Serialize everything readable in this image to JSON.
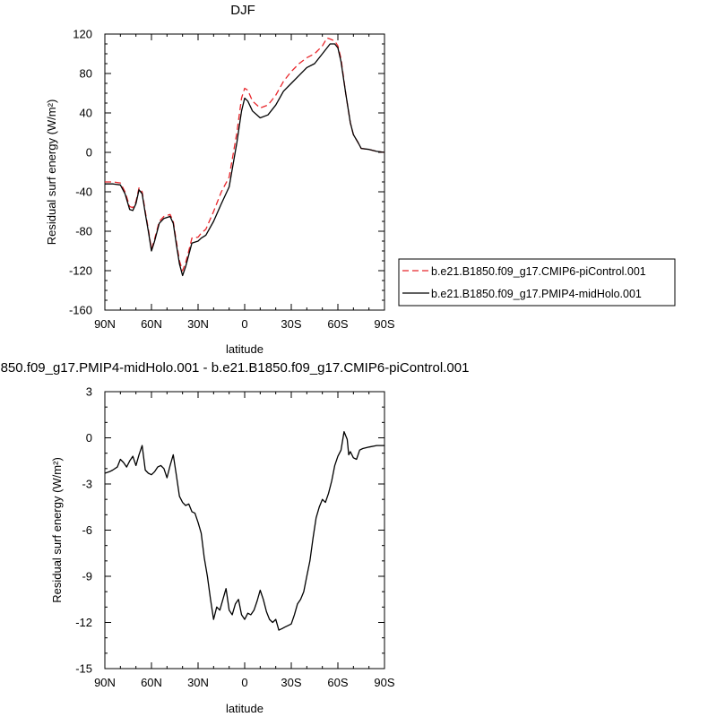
{
  "chart_data": [
    {
      "type": "line",
      "title": "DJF",
      "xlabel": "latitude",
      "ylabel": "Residual surf energy (W/m²)",
      "xlim": [
        90,
        -90
      ],
      "ylim": [
        -160,
        120
      ],
      "x_ticks": [
        {
          "value": 90,
          "label": "90N"
        },
        {
          "value": 60,
          "label": "60N"
        },
        {
          "value": 30,
          "label": "30N"
        },
        {
          "value": 0,
          "label": "0"
        },
        {
          "value": -30,
          "label": "30S"
        },
        {
          "value": -60,
          "label": "60S"
        },
        {
          "value": -90,
          "label": "90S"
        }
      ],
      "y_ticks": [
        120,
        80,
        40,
        0,
        -40,
        -80,
        -120,
        -160
      ],
      "grid": false,
      "legend": "outside-right",
      "series": [
        {
          "name": "b.e21.B1850.f09_g17.CMIP6-piControl.001",
          "color": "#e8262b",
          "dash": "dashed",
          "x": [
            90,
            85,
            80,
            77,
            74,
            72,
            70,
            68,
            66,
            64,
            62,
            60,
            58,
            55,
            52,
            50,
            48,
            46,
            44,
            42,
            40,
            38,
            36,
            34,
            30,
            28,
            25,
            20,
            15,
            10,
            5,
            2,
            0,
            -2,
            -5,
            -10,
            -15,
            -20,
            -25,
            -30,
            -35,
            -40,
            -45,
            -50,
            -53,
            -55,
            -58,
            -60,
            -62,
            -65,
            -68,
            -70,
            -73,
            -75,
            -80,
            -85,
            -90
          ],
          "y": [
            -30,
            -30,
            -31,
            -40,
            -55,
            -56,
            -50,
            -36,
            -40,
            -60,
            -78,
            -98,
            -88,
            -70,
            -65,
            -64,
            -63,
            -70,
            -90,
            -110,
            -120,
            -112,
            -100,
            -87,
            -86,
            -82,
            -78,
            -60,
            -40,
            -25,
            20,
            55,
            65,
            63,
            52,
            45,
            48,
            58,
            72,
            82,
            90,
            96,
            100,
            108,
            116,
            115,
            113,
            108,
            95,
            60,
            30,
            18,
            10,
            4,
            3,
            1,
            0
          ]
        },
        {
          "name": "b.e21.B1850.f09_g17.PMIP4-midHolo.001",
          "color": "#000000",
          "dash": "solid",
          "x": [
            90,
            85,
            80,
            77,
            74,
            72,
            70,
            68,
            66,
            64,
            62,
            60,
            58,
            55,
            52,
            50,
            48,
            46,
            44,
            42,
            40,
            38,
            36,
            34,
            30,
            28,
            25,
            20,
            15,
            10,
            5,
            2,
            0,
            -2,
            -5,
            -10,
            -15,
            -20,
            -25,
            -30,
            -35,
            -40,
            -45,
            -50,
            -53,
            -55,
            -58,
            -60,
            -62,
            -65,
            -68,
            -70,
            -73,
            -75,
            -80,
            -85,
            -90
          ],
          "y": [
            -32,
            -32,
            -33,
            -42,
            -58,
            -59,
            -52,
            -38,
            -42,
            -62,
            -80,
            -100,
            -90,
            -72,
            -67,
            -66,
            -65,
            -72,
            -93,
            -113,
            -125,
            -116,
            -104,
            -92,
            -90,
            -87,
            -84,
            -70,
            -52,
            -35,
            10,
            42,
            55,
            52,
            42,
            35,
            38,
            48,
            62,
            70,
            78,
            86,
            90,
            100,
            106,
            110,
            110,
            106,
            92,
            60,
            30,
            18,
            10,
            4,
            3,
            1,
            0
          ]
        }
      ]
    },
    {
      "type": "line",
      "title": "850.f09_g17.PMIP4-midHolo.001 - b.e21.B1850.f09_g17.CMIP6-piControl.001",
      "xlabel": "latitude",
      "ylabel": "Residual surf energy (W/m²)",
      "xlim": [
        90,
        -90
      ],
      "ylim": [
        -15,
        3
      ],
      "x_ticks": [
        {
          "value": 90,
          "label": "90N"
        },
        {
          "value": 60,
          "label": "60N"
        },
        {
          "value": 30,
          "label": "30N"
        },
        {
          "value": 0,
          "label": "0"
        },
        {
          "value": -30,
          "label": "30S"
        },
        {
          "value": -60,
          "label": "60S"
        },
        {
          "value": -90,
          "label": "90S"
        }
      ],
      "y_ticks": [
        3,
        0,
        -3,
        -6,
        -9,
        -12,
        -15
      ],
      "grid": false,
      "series": [
        {
          "color": "#000000",
          "dash": "solid",
          "x": [
            90,
            87,
            85,
            82,
            80,
            78,
            76,
            74,
            72,
            70,
            68,
            66,
            64,
            62,
            60,
            58,
            56,
            54,
            52,
            50,
            48,
            46,
            44,
            42,
            40,
            38,
            36,
            34,
            32,
            30,
            28,
            26,
            24,
            22,
            20,
            18,
            16,
            14,
            12,
            10,
            8,
            6,
            4,
            2,
            0,
            -2,
            -4,
            -6,
            -8,
            -10,
            -12,
            -14,
            -16,
            -18,
            -20,
            -22,
            -24,
            -26,
            -28,
            -30,
            -32,
            -34,
            -36,
            -38,
            -40,
            -42,
            -44,
            -46,
            -48,
            -50,
            -52,
            -54,
            -56,
            -58,
            -60,
            -62,
            -64,
            -66,
            -67,
            -68,
            -70,
            -72,
            -74,
            -76,
            -80,
            -85,
            -90
          ],
          "y": [
            -2.3,
            -2.2,
            -2.1,
            -1.9,
            -1.4,
            -1.6,
            -1.9,
            -1.5,
            -1.2,
            -1.8,
            -1.1,
            -0.5,
            -2.1,
            -2.3,
            -2.4,
            -2.2,
            -1.9,
            -1.8,
            -2.0,
            -2.6,
            -1.8,
            -1.1,
            -2.4,
            -3.8,
            -4.2,
            -4.4,
            -4.3,
            -4.8,
            -4.9,
            -5.5,
            -6.2,
            -7.8,
            -9.0,
            -10.5,
            -11.8,
            -11.0,
            -11.2,
            -10.5,
            -9.8,
            -11.2,
            -11.5,
            -10.8,
            -10.5,
            -11.5,
            -11.8,
            -11.4,
            -11.5,
            -11.2,
            -10.6,
            -9.9,
            -10.5,
            -11.3,
            -11.8,
            -12.0,
            -11.8,
            -12.5,
            -12.4,
            -12.3,
            -12.2,
            -12.1,
            -11.5,
            -10.8,
            -10.5,
            -10.0,
            -9.0,
            -8.0,
            -6.5,
            -5.2,
            -4.5,
            -4.0,
            -4.2,
            -3.6,
            -2.8,
            -1.8,
            -1.2,
            -0.8,
            0.4,
            -0.1,
            -1.1,
            -0.9,
            -1.3,
            -1.4,
            -0.8,
            -0.7,
            -0.6,
            -0.5,
            -0.5
          ]
        }
      ]
    }
  ]
}
